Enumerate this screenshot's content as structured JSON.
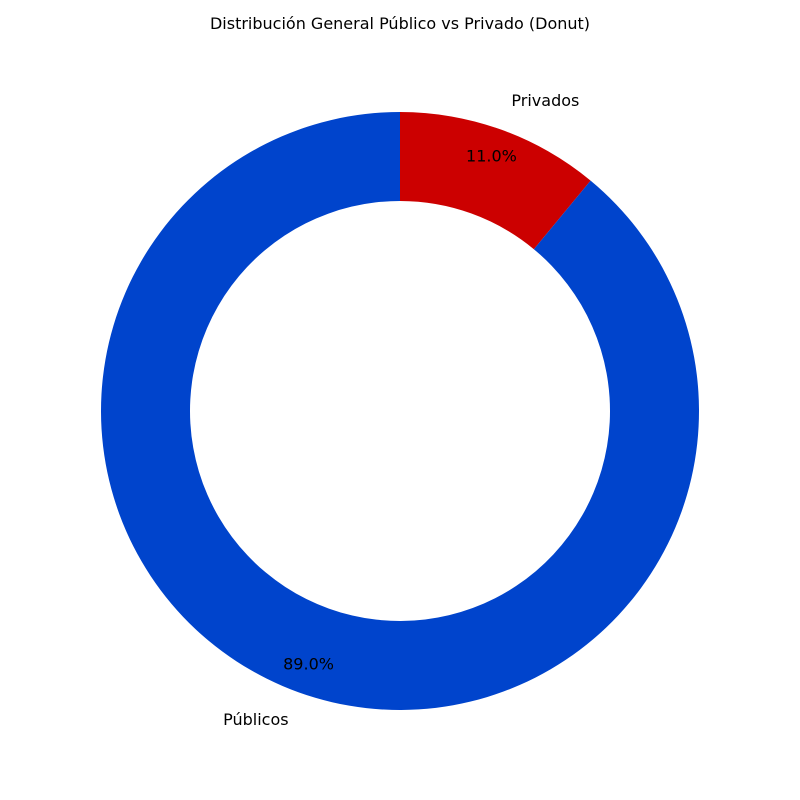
{
  "chart_data": {
    "type": "pie",
    "variant": "donut",
    "title": "Distribución General Público vs Privado (Donut)",
    "slices": [
      {
        "label": "Privados",
        "value": 11.0,
        "pct_label": "11.0%",
        "color": "#cc0000"
      },
      {
        "label": "Públicos",
        "value": 89.0,
        "pct_label": "89.0%",
        "color": "#0044cc"
      }
    ],
    "start_angle_deg": 90,
    "direction": "clockwise",
    "legend": "none"
  }
}
